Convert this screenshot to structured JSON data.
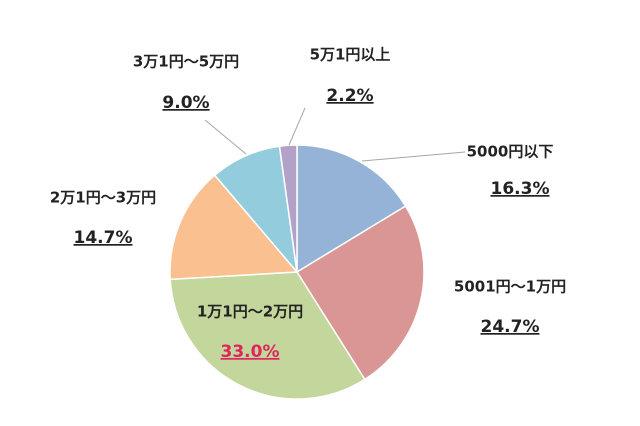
{
  "chart_data": {
    "type": "pie",
    "categories": [
      "5000円以下",
      "5001円～1万円",
      "1万1円～2万円",
      "2万1円～3万円",
      "3万1円～5万円",
      "5万1円以上"
    ],
    "values": [
      16.3,
      24.7,
      33.0,
      14.7,
      9.0,
      2.2
    ],
    "value_labels": [
      "16.3%",
      "24.7%",
      "33.0%",
      "14.7%",
      "9.0%",
      "2.2%"
    ],
    "colors": [
      "#95b3d7",
      "#d99694",
      "#c3d69b",
      "#fac090",
      "#93cddd",
      "#b3a2c7"
    ],
    "value_label_colors": [
      "#222222",
      "#222222",
      "#e0245e",
      "#222222",
      "#222222",
      "#222222"
    ]
  }
}
